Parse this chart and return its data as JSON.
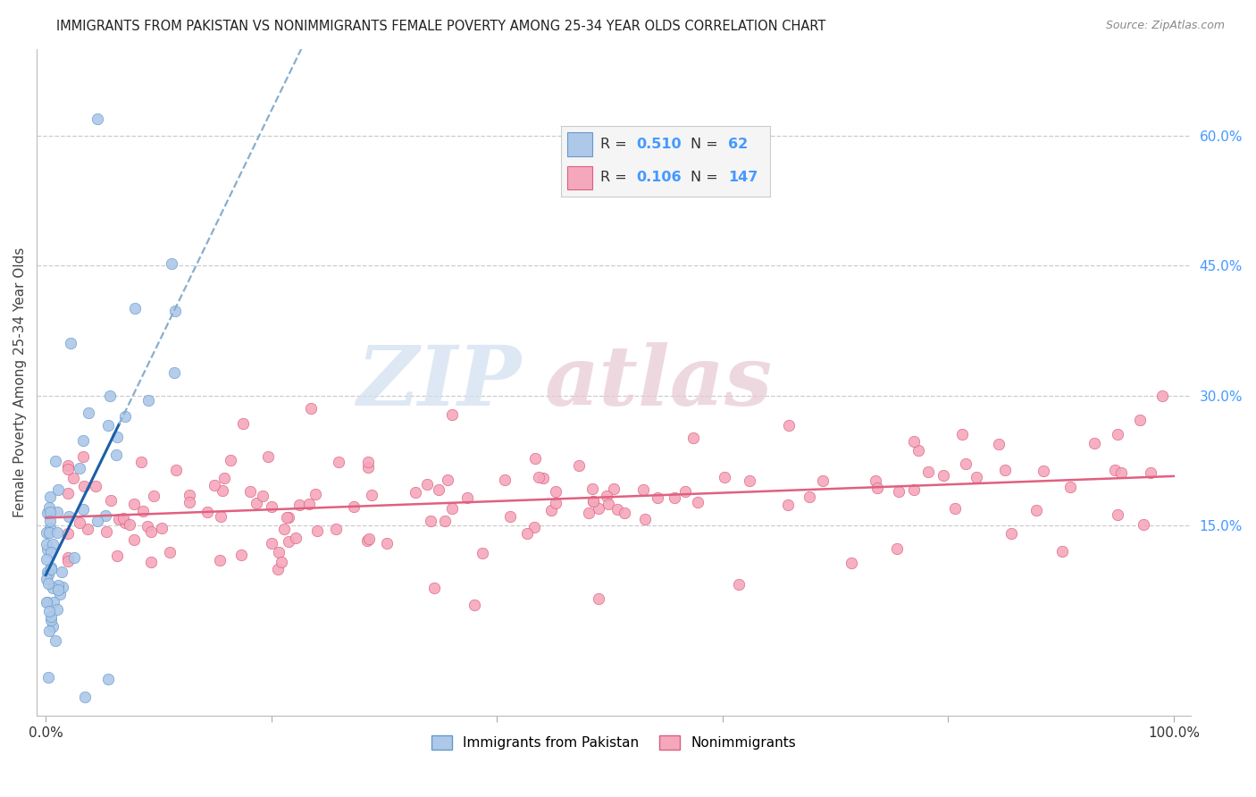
{
  "title": "IMMIGRANTS FROM PAKISTAN VS NONIMMIGRANTS FEMALE POVERTY AMONG 25-34 YEAR OLDS CORRELATION CHART",
  "source": "Source: ZipAtlas.com",
  "ylabel": "Female Poverty Among 25-34 Year Olds",
  "xlim": [
    -0.008,
    1.015
  ],
  "ylim": [
    -0.07,
    0.7
  ],
  "x_ticks": [
    0.0,
    0.2,
    0.4,
    0.6,
    0.8,
    1.0
  ],
  "x_tick_labels": [
    "0.0%",
    "",
    "",
    "",
    "",
    "100.0%"
  ],
  "y_tick_vals_right": [
    0.15,
    0.3,
    0.45,
    0.6
  ],
  "y_tick_labels_right": [
    "15.0%",
    "30.0%",
    "45.0%",
    "60.0%"
  ],
  "scatter1_color": "#adc8e8",
  "scatter1_edge": "#6699cc",
  "line1_solid_color": "#1a5fa8",
  "line1_dash_color": "#88aece",
  "scatter2_color": "#f5a8bc",
  "scatter2_edge": "#d96080",
  "line2_color": "#e06080",
  "watermark_color": "#d0dff0",
  "watermark_color2": "#e8c8d4",
  "grid_color": "#cccccc",
  "grid_style": "--",
  "background": "#ffffff",
  "legend_box_color": "#f5f5f5",
  "legend_border_color": "#cccccc",
  "title_color": "#222222",
  "source_color": "#888888",
  "ylabel_color": "#444444",
  "right_tick_color": "#4499ff",
  "seed": 77
}
